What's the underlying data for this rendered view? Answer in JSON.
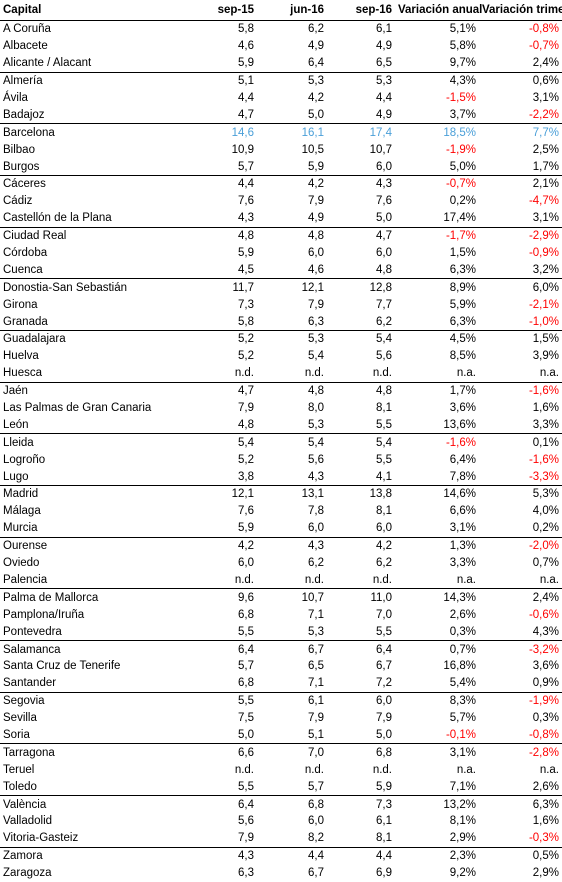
{
  "colors": {
    "negative": "#ff0000",
    "highlight": "#4a9fd8"
  },
  "headers": [
    "Capital",
    "sep-15",
    "jun-16",
    "sep-16",
    "Variación anual",
    "Variación trimestral"
  ],
  "highlight_row": "Barcelona",
  "rows": [
    [
      "A Coruña",
      "5,8",
      "6,2",
      "6,1",
      "5,1%",
      "-0,8%"
    ],
    [
      "Albacete",
      "4,6",
      "4,9",
      "4,9",
      "5,8%",
      "-0,7%"
    ],
    [
      "Alicante / Alacant",
      "5,9",
      "6,4",
      "6,5",
      "9,7%",
      "2,4%"
    ],
    [
      "Almería",
      "5,1",
      "5,3",
      "5,3",
      "4,3%",
      "0,6%"
    ],
    [
      "Ávila",
      "4,4",
      "4,2",
      "4,4",
      "-1,5%",
      "3,1%"
    ],
    [
      "Badajoz",
      "4,7",
      "5,0",
      "4,9",
      "3,7%",
      "-2,2%"
    ],
    [
      "Barcelona",
      "14,6",
      "16,1",
      "17,4",
      "18,5%",
      "7,7%"
    ],
    [
      "Bilbao",
      "10,9",
      "10,5",
      "10,7",
      "-1,9%",
      "2,5%"
    ],
    [
      "Burgos",
      "5,7",
      "5,9",
      "6,0",
      "5,0%",
      "1,7%"
    ],
    [
      "Cáceres",
      "4,4",
      "4,2",
      "4,3",
      "-0,7%",
      "2,1%"
    ],
    [
      "Cádiz",
      "7,6",
      "7,9",
      "7,6",
      "0,2%",
      "-4,7%"
    ],
    [
      "Castellón de la Plana",
      "4,3",
      "4,9",
      "5,0",
      "17,4%",
      "3,1%"
    ],
    [
      "Ciudad Real",
      "4,8",
      "4,8",
      "4,7",
      "-1,7%",
      "-2,9%"
    ],
    [
      "Córdoba",
      "5,9",
      "6,0",
      "6,0",
      "1,5%",
      "-0,9%"
    ],
    [
      "Cuenca",
      "4,5",
      "4,6",
      "4,8",
      "6,3%",
      "3,2%"
    ],
    [
      "Donostia-San Sebastián",
      "11,7",
      "12,1",
      "12,8",
      "8,9%",
      "6,0%"
    ],
    [
      "Girona",
      "7,3",
      "7,9",
      "7,7",
      "5,9%",
      "-2,1%"
    ],
    [
      "Granada",
      "5,8",
      "6,3",
      "6,2",
      "6,3%",
      "-1,0%"
    ],
    [
      "Guadalajara",
      "5,2",
      "5,3",
      "5,4",
      "4,5%",
      "1,5%"
    ],
    [
      "Huelva",
      "5,2",
      "5,4",
      "5,6",
      "8,5%",
      "3,9%"
    ],
    [
      "Huesca",
      "n.d.",
      "n.d.",
      "n.d.",
      "n.a.",
      "n.a."
    ],
    [
      "Jaén",
      "4,7",
      "4,8",
      "4,8",
      "1,7%",
      "-1,6%"
    ],
    [
      "Las Palmas de Gran Canaria",
      "7,9",
      "8,0",
      "8,1",
      "3,6%",
      "1,6%"
    ],
    [
      "León",
      "4,8",
      "5,3",
      "5,5",
      "13,6%",
      "3,3%"
    ],
    [
      "Lleida",
      "5,4",
      "5,4",
      "5,4",
      "-1,6%",
      "0,1%"
    ],
    [
      "Logroño",
      "5,2",
      "5,6",
      "5,5",
      "6,4%",
      "-1,6%"
    ],
    [
      "Lugo",
      "3,8",
      "4,3",
      "4,1",
      "7,8%",
      "-3,3%"
    ],
    [
      "Madrid",
      "12,1",
      "13,1",
      "13,8",
      "14,6%",
      "5,3%"
    ],
    [
      "Málaga",
      "7,6",
      "7,8",
      "8,1",
      "6,6%",
      "4,0%"
    ],
    [
      "Murcia",
      "5,9",
      "6,0",
      "6,0",
      "3,1%",
      "0,2%"
    ],
    [
      "Ourense",
      "4,2",
      "4,3",
      "4,2",
      "1,3%",
      "-2,0%"
    ],
    [
      "Oviedo",
      "6,0",
      "6,2",
      "6,2",
      "3,3%",
      "0,7%"
    ],
    [
      "Palencia",
      "n.d.",
      "n.d.",
      "n.d.",
      "n.a.",
      "n.a."
    ],
    [
      "Palma de Mallorca",
      "9,6",
      "10,7",
      "11,0",
      "14,3%",
      "2,4%"
    ],
    [
      "Pamplona/Iruña",
      "6,8",
      "7,1",
      "7,0",
      "2,6%",
      "-0,6%"
    ],
    [
      "Pontevedra",
      "5,5",
      "5,3",
      "5,5",
      "0,3%",
      "4,3%"
    ],
    [
      "Salamanca",
      "6,4",
      "6,7",
      "6,4",
      "0,7%",
      "-3,2%"
    ],
    [
      "Santa Cruz de Tenerife",
      "5,7",
      "6,5",
      "6,7",
      "16,8%",
      "3,6%"
    ],
    [
      "Santander",
      "6,8",
      "7,1",
      "7,2",
      "5,4%",
      "0,9%"
    ],
    [
      "Segovia",
      "5,5",
      "6,1",
      "6,0",
      "8,3%",
      "-1,9%"
    ],
    [
      "Sevilla",
      "7,5",
      "7,9",
      "7,9",
      "5,7%",
      "0,3%"
    ],
    [
      "Soria",
      "5,0",
      "5,1",
      "5,0",
      "-0,1%",
      "-0,8%"
    ],
    [
      "Tarragona",
      "6,6",
      "7,0",
      "6,8",
      "3,1%",
      "-2,8%"
    ],
    [
      "Teruel",
      "n.d.",
      "n.d.",
      "n.d.",
      "n.a.",
      "n.a."
    ],
    [
      "Toledo",
      "5,5",
      "5,7",
      "5,9",
      "7,1%",
      "2,6%"
    ],
    [
      "València",
      "6,4",
      "6,8",
      "7,3",
      "13,2%",
      "6,3%"
    ],
    [
      "Valladolid",
      "5,6",
      "6,0",
      "6,1",
      "8,1%",
      "1,6%"
    ],
    [
      "Vitoria-Gasteiz",
      "7,9",
      "8,2",
      "8,1",
      "2,9%",
      "-0,3%"
    ],
    [
      "Zamora",
      "4,3",
      "4,4",
      "4,4",
      "2,3%",
      "0,5%"
    ],
    [
      "Zaragoza",
      "6,3",
      "6,7",
      "6,9",
      "9,2%",
      "2,9%"
    ]
  ]
}
